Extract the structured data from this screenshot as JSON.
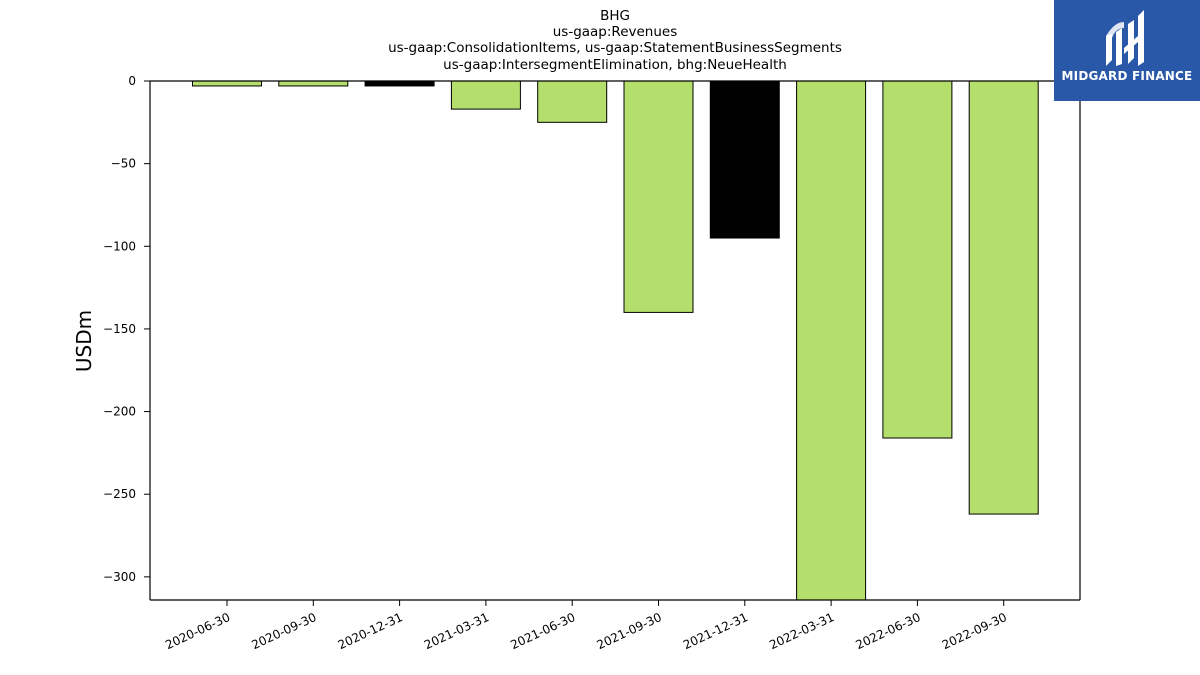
{
  "chart_data": {
    "type": "bar",
    "title_lines": [
      "BHG",
      "us-gaap:Revenues",
      "us-gaap:ConsolidationItems, us-gaap:StatementBusinessSegments",
      "us-gaap:IntersegmentElimination, bhg:NeueHealth"
    ],
    "categories": [
      "2020-06-30",
      "2020-09-30",
      "2020-12-31",
      "2021-03-31",
      "2021-06-30",
      "2021-09-30",
      "2021-12-31",
      "2022-03-31",
      "2022-06-30",
      "2022-09-30"
    ],
    "values": [
      -3,
      -3,
      -3,
      -17,
      -25,
      -140,
      -95,
      -314,
      -216,
      -262
    ],
    "bar_colors": [
      "#b5df6c",
      "#b5df6c",
      "#000000",
      "#b5df6c",
      "#b5df6c",
      "#b5df6c",
      "#000000",
      "#b5df6c",
      "#b5df6c",
      "#b5df6c"
    ],
    "ylabel": "USDm",
    "xlabel": "",
    "ylim": [
      -314,
      0
    ],
    "yticks": [
      0,
      -50,
      -100,
      -150,
      -200,
      -250,
      -300
    ],
    "ytick_labels": [
      "0",
      "−50",
      "−100",
      "−150",
      "−200",
      "−250",
      "−300"
    ],
    "grid": false,
    "legend": "none"
  },
  "logo": {
    "text": "MIDGARD FINANCE",
    "color": "#2a58a8"
  }
}
